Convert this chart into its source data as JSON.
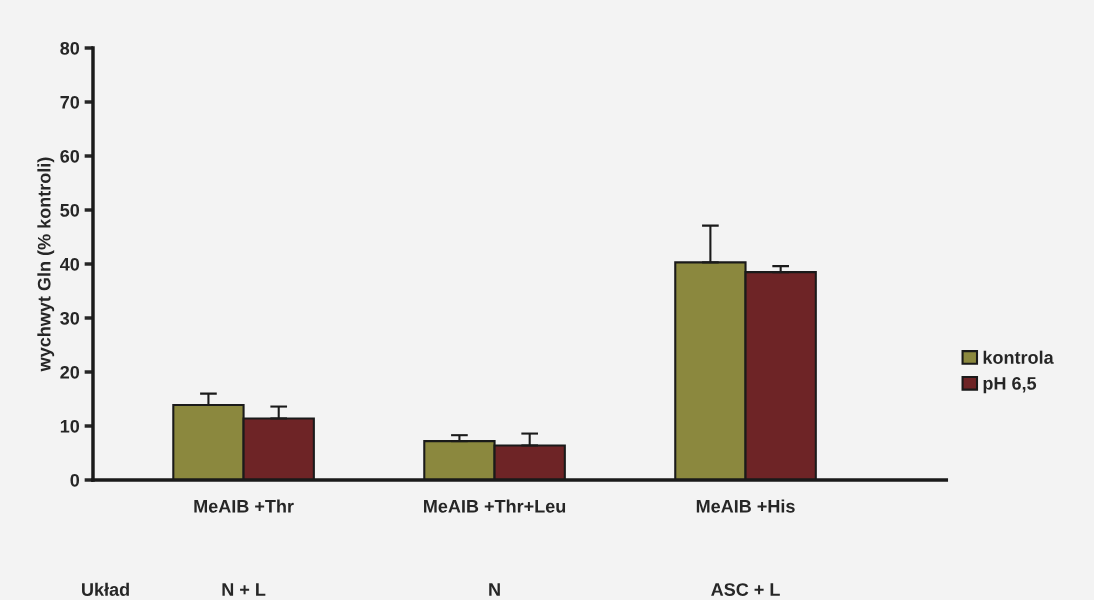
{
  "chart_data": {
    "type": "bar",
    "ylabel": "wychwyt Gln (% kontroli)",
    "categories": [
      "MeAIB +Thr",
      "MeAIB +Thr+Leu",
      "MeAIB +His"
    ],
    "series": [
      {
        "name": "kontrola",
        "color": "#8b883e",
        "values": [
          13.9,
          7.2,
          40.3
        ],
        "errors": [
          2.1,
          1.1,
          6.8
        ]
      },
      {
        "name": "pH 6,5",
        "color": "#6e2426",
        "values": [
          11.4,
          6.4,
          38.5
        ],
        "errors": [
          2.2,
          2.2,
          1.1
        ]
      }
    ],
    "ylim": [
      0,
      80
    ],
    "yticks": [
      0,
      10,
      20,
      30,
      40,
      50,
      60,
      70,
      80
    ],
    "grid": false,
    "legend": "right",
    "annotations": [
      "Układ",
      "N + L",
      "N",
      "ASC + L"
    ]
  }
}
